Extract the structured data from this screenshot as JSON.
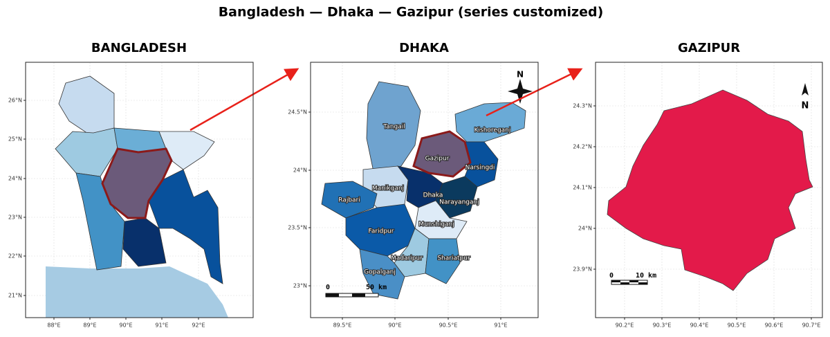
{
  "title": "Bangladesh — Dhaka — Gazipur  (series customized)",
  "panels": [
    {
      "title": "BANGLADESH",
      "xticks": [
        "88°E",
        "89°E",
        "90°E",
        "91°E",
        "92°E"
      ],
      "yticks": [
        "26°N",
        "25°N",
        "24°N",
        "23°N",
        "22°N",
        "21°N"
      ]
    },
    {
      "title": "DHAKA",
      "xticks": [
        "89.5°E",
        "90°E",
        "90.5°E",
        "91°E"
      ],
      "yticks": [
        "24.5°N",
        "24°N",
        "23.5°N",
        "23°N"
      ],
      "districts": [
        "Tangail",
        "Kishoreganj",
        "Gazipur",
        "Narsingdi",
        "Manikganj",
        "Rajbari",
        "Dhaka",
        "Narayanganj",
        "Faridpur",
        "Munshiganj",
        "Madaripur",
        "Shariatpur",
        "Gopalganj"
      ],
      "north": "N",
      "scale": [
        "0",
        "50 km"
      ]
    },
    {
      "title": "GAZIPUR",
      "xticks": [
        "90.2°E",
        "90.3°E",
        "90.4°E",
        "90.5°E",
        "90.6°E",
        "90.7°E"
      ],
      "yticks": [
        "24.3°N",
        "24.2°N",
        "24.1°N",
        "24°N",
        "23.9°N"
      ],
      "north": "N",
      "scale": [
        "0",
        "10 km"
      ]
    }
  ]
}
